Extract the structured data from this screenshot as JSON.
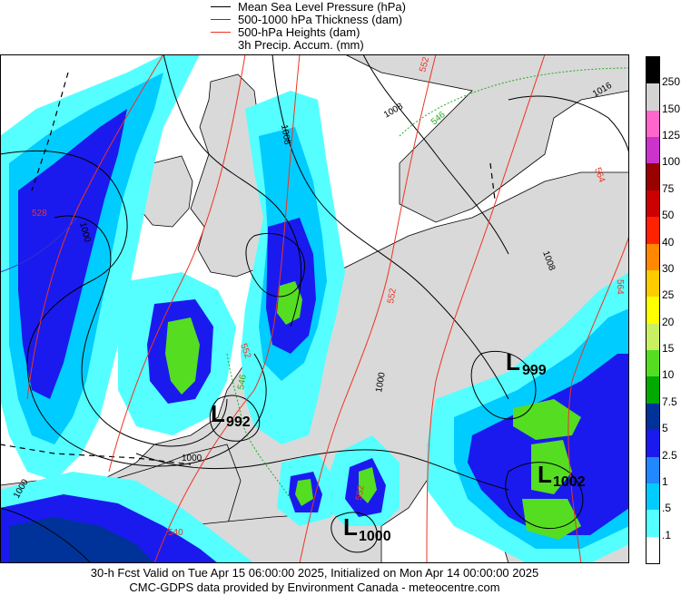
{
  "legend": {
    "items": [
      {
        "label": "Mean Sea Level Pressure (hPa)",
        "color": "#000000"
      },
      {
        "label": "500-1000 hPa Thickness (dam)",
        "color": "#3333cc"
      },
      {
        "label": "500-hPa Heights (dam)",
        "color": "#ee3322"
      },
      {
        "label": "3h Precip. Accum. (mm)",
        "color": null
      }
    ]
  },
  "colorbar": {
    "labels": [
      "250",
      "150",
      "125",
      "100",
      "75",
      "50",
      "40",
      "30",
      "25",
      "20",
      "15",
      "10",
      "7.5",
      "5",
      "2.5",
      "1",
      ".5",
      ".1"
    ],
    "colors": [
      "#000000",
      "#d3d3d3",
      "#ff66cc",
      "#cc33cc",
      "#990000",
      "#cc0000",
      "#ff2200",
      "#ff8800",
      "#ffcc00",
      "#ffff00",
      "#c8f060",
      "#55dd22",
      "#00aa00",
      "#003399",
      "#1a1aee",
      "#2288ff",
      "#00ccff",
      "#55ffff",
      "#ffffff"
    ]
  },
  "map": {
    "pressure_centers": [
      {
        "letter": "L",
        "value": "992"
      },
      {
        "letter": "L",
        "value": "999"
      },
      {
        "letter": "L",
        "value": "1002"
      },
      {
        "letter": "L",
        "value": "1000"
      }
    ],
    "isobar_labels": [
      "1000",
      "1000",
      "1000",
      "1008",
      "1008",
      "1016",
      "1008",
      "1000"
    ],
    "height_labels": [
      "528",
      "552",
      "552",
      "564",
      "540",
      "552",
      "564",
      "552"
    ],
    "thickness_labels": [
      "546",
      "546"
    ],
    "colors": {
      "isobar": "#000000",
      "height": "#ee3322",
      "thickness_cold": "#3333cc",
      "thickness_warm": "#22aa22",
      "land": "#d9d9d9",
      "sea": "#ffffff",
      "precip_light": "#55ffff",
      "precip_mid": "#00ccff",
      "precip_heavy": "#1a1aee",
      "precip_green": "#55dd22"
    }
  },
  "footer": {
    "line1": "30-h Fcst Valid on Tue Apr 15 06:00:00 2025, Initialized on Mon Apr 14 00:00:00 2025",
    "line2": "CMC-GDPS data provided by Environment Canada - meteocentre.com"
  }
}
